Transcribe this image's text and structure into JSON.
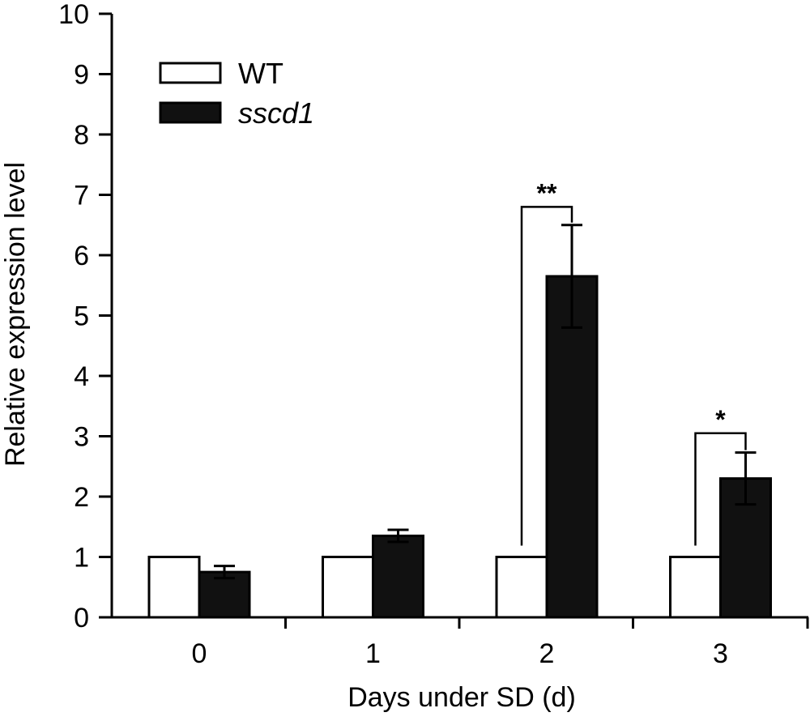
{
  "chart_data": {
    "type": "bar",
    "xlabel": "Days under SD (d)",
    "ylabel": "Relative expression level",
    "ylim": [
      0,
      10
    ],
    "yticks": [
      0,
      1,
      2,
      3,
      4,
      5,
      6,
      7,
      8,
      9,
      10
    ],
    "categories": [
      "0",
      "1",
      "2",
      "3"
    ],
    "series": [
      {
        "name": "WT",
        "italic": false,
        "color": "#ffffff",
        "values": [
          1,
          1,
          1,
          1
        ],
        "errors": [
          0,
          0,
          0,
          0
        ]
      },
      {
        "name": "sscd1",
        "italic": true,
        "color": "#111111",
        "values": [
          0.75,
          1.35,
          5.65,
          2.3
        ],
        "errors": [
          0.1,
          0.1,
          0.85,
          0.43
        ]
      }
    ],
    "significance": [
      {
        "category_index": 2,
        "label": "**",
        "level": 6.8
      },
      {
        "category_index": 3,
        "label": "*",
        "level": 3.05
      }
    ],
    "legend_position": "top-left",
    "grid": false
  }
}
